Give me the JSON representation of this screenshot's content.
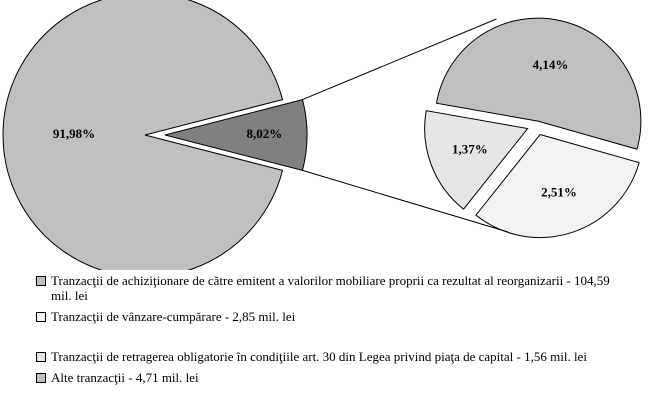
{
  "chart_data": {
    "type": "pie-of-pie",
    "main": {
      "values": [
        91.98,
        8.02
      ],
      "value_labels": [
        "91,98%",
        "8,02%"
      ],
      "colors": [
        "#c0c0c0",
        "#808080"
      ]
    },
    "secondary": {
      "values": [
        4.14,
        2.51,
        1.37
      ],
      "value_labels": [
        "4,14%",
        "2,51%",
        "1,37%"
      ],
      "colors": [
        "#c0c0c0",
        "#f2f2f2",
        "#e6e6e6"
      ]
    },
    "legend": [
      {
        "name": "Tranzacţii de achiziţionare de către emitent a valorilor mobiliare proprii ca rezultat al reorganizarii - 104,59 mil. lei",
        "color": "#c0c0c0"
      },
      {
        "name": "Tranzacţii de vânzare-cumpărare - 2,85 mil. lei",
        "color": "#f2f2f2"
      },
      {
        "name": "Tranzacţii de retragerea obligatorie în condiţiile art. 30 din Legea privind piaţa de capital - 1,56 mil. lei",
        "color": "#e6e6e6"
      },
      {
        "name": "Alte tranzacţii - 4,71 mil. lei",
        "color": "#c0c0c0"
      }
    ]
  }
}
